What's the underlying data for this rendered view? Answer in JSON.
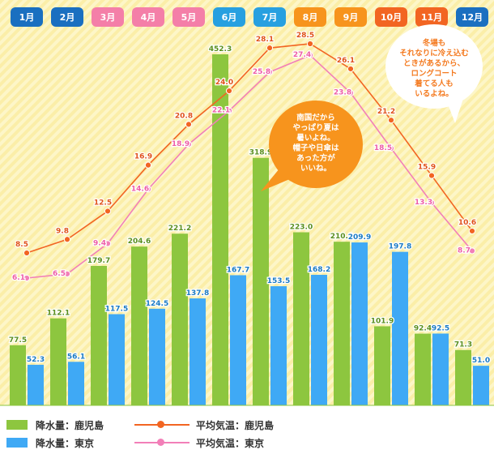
{
  "chart_data": {
    "type": "bar",
    "categories": [
      "1月",
      "2月",
      "3月",
      "4月",
      "5月",
      "6月",
      "7月",
      "8月",
      "9月",
      "10月",
      "11月",
      "12月"
    ],
    "month_tab_colors": [
      "#1a6fc0",
      "#1a6fc0",
      "#f47fa8",
      "#f47fa8",
      "#f47fa8",
      "#27a0e0",
      "#27a0e0",
      "#f7941d",
      "#f7941d",
      "#f26522",
      "#f26522",
      "#1a6fc0"
    ],
    "bar_series": [
      {
        "name": "降水量：鹿児島",
        "color": "#8dc63f",
        "values": [
          77.5,
          112.1,
          179.7,
          204.6,
          221.2,
          452.3,
          318.9,
          223.0,
          210.8,
          101.9,
          92.4,
          71.3
        ]
      },
      {
        "name": "降水量：東京",
        "color": "#3fa9f5",
        "values": [
          52.3,
          56.1,
          117.5,
          124.5,
          137.8,
          167.7,
          153.5,
          168.2,
          209.9,
          197.8,
          92.5,
          51.0
        ]
      }
    ],
    "line_series": [
      {
        "name": "平均気温：鹿児島",
        "color": "#f26522",
        "values": [
          8.5,
          9.8,
          12.5,
          16.9,
          20.8,
          24.0,
          28.1,
          28.5,
          26.1,
          21.2,
          15.9,
          10.6
        ]
      },
      {
        "name": "平均気温：東京",
        "color": "#f27fb8",
        "values": [
          6.1,
          6.5,
          9.4,
          14.6,
          18.9,
          22.1,
          25.8,
          27.4,
          23.8,
          18.5,
          13.3,
          8.7
        ]
      }
    ],
    "bar_ylim": [
      0,
      460
    ],
    "line_ylim": [
      4,
      32
    ],
    "grid": false,
    "legend_position": "bottom-left",
    "annotations": [
      {
        "id": "summer",
        "text": [
          "南国だから",
          "やっぱり夏は",
          "暑いよね。",
          "帽子や日傘は",
          "あった方が",
          "いいね。"
        ]
      },
      {
        "id": "winter",
        "text": [
          "冬場も",
          "それなりに冷え込む",
          "ときがあるから、",
          "ロングコート",
          "着てる人も",
          "いるよね。"
        ]
      }
    ]
  }
}
